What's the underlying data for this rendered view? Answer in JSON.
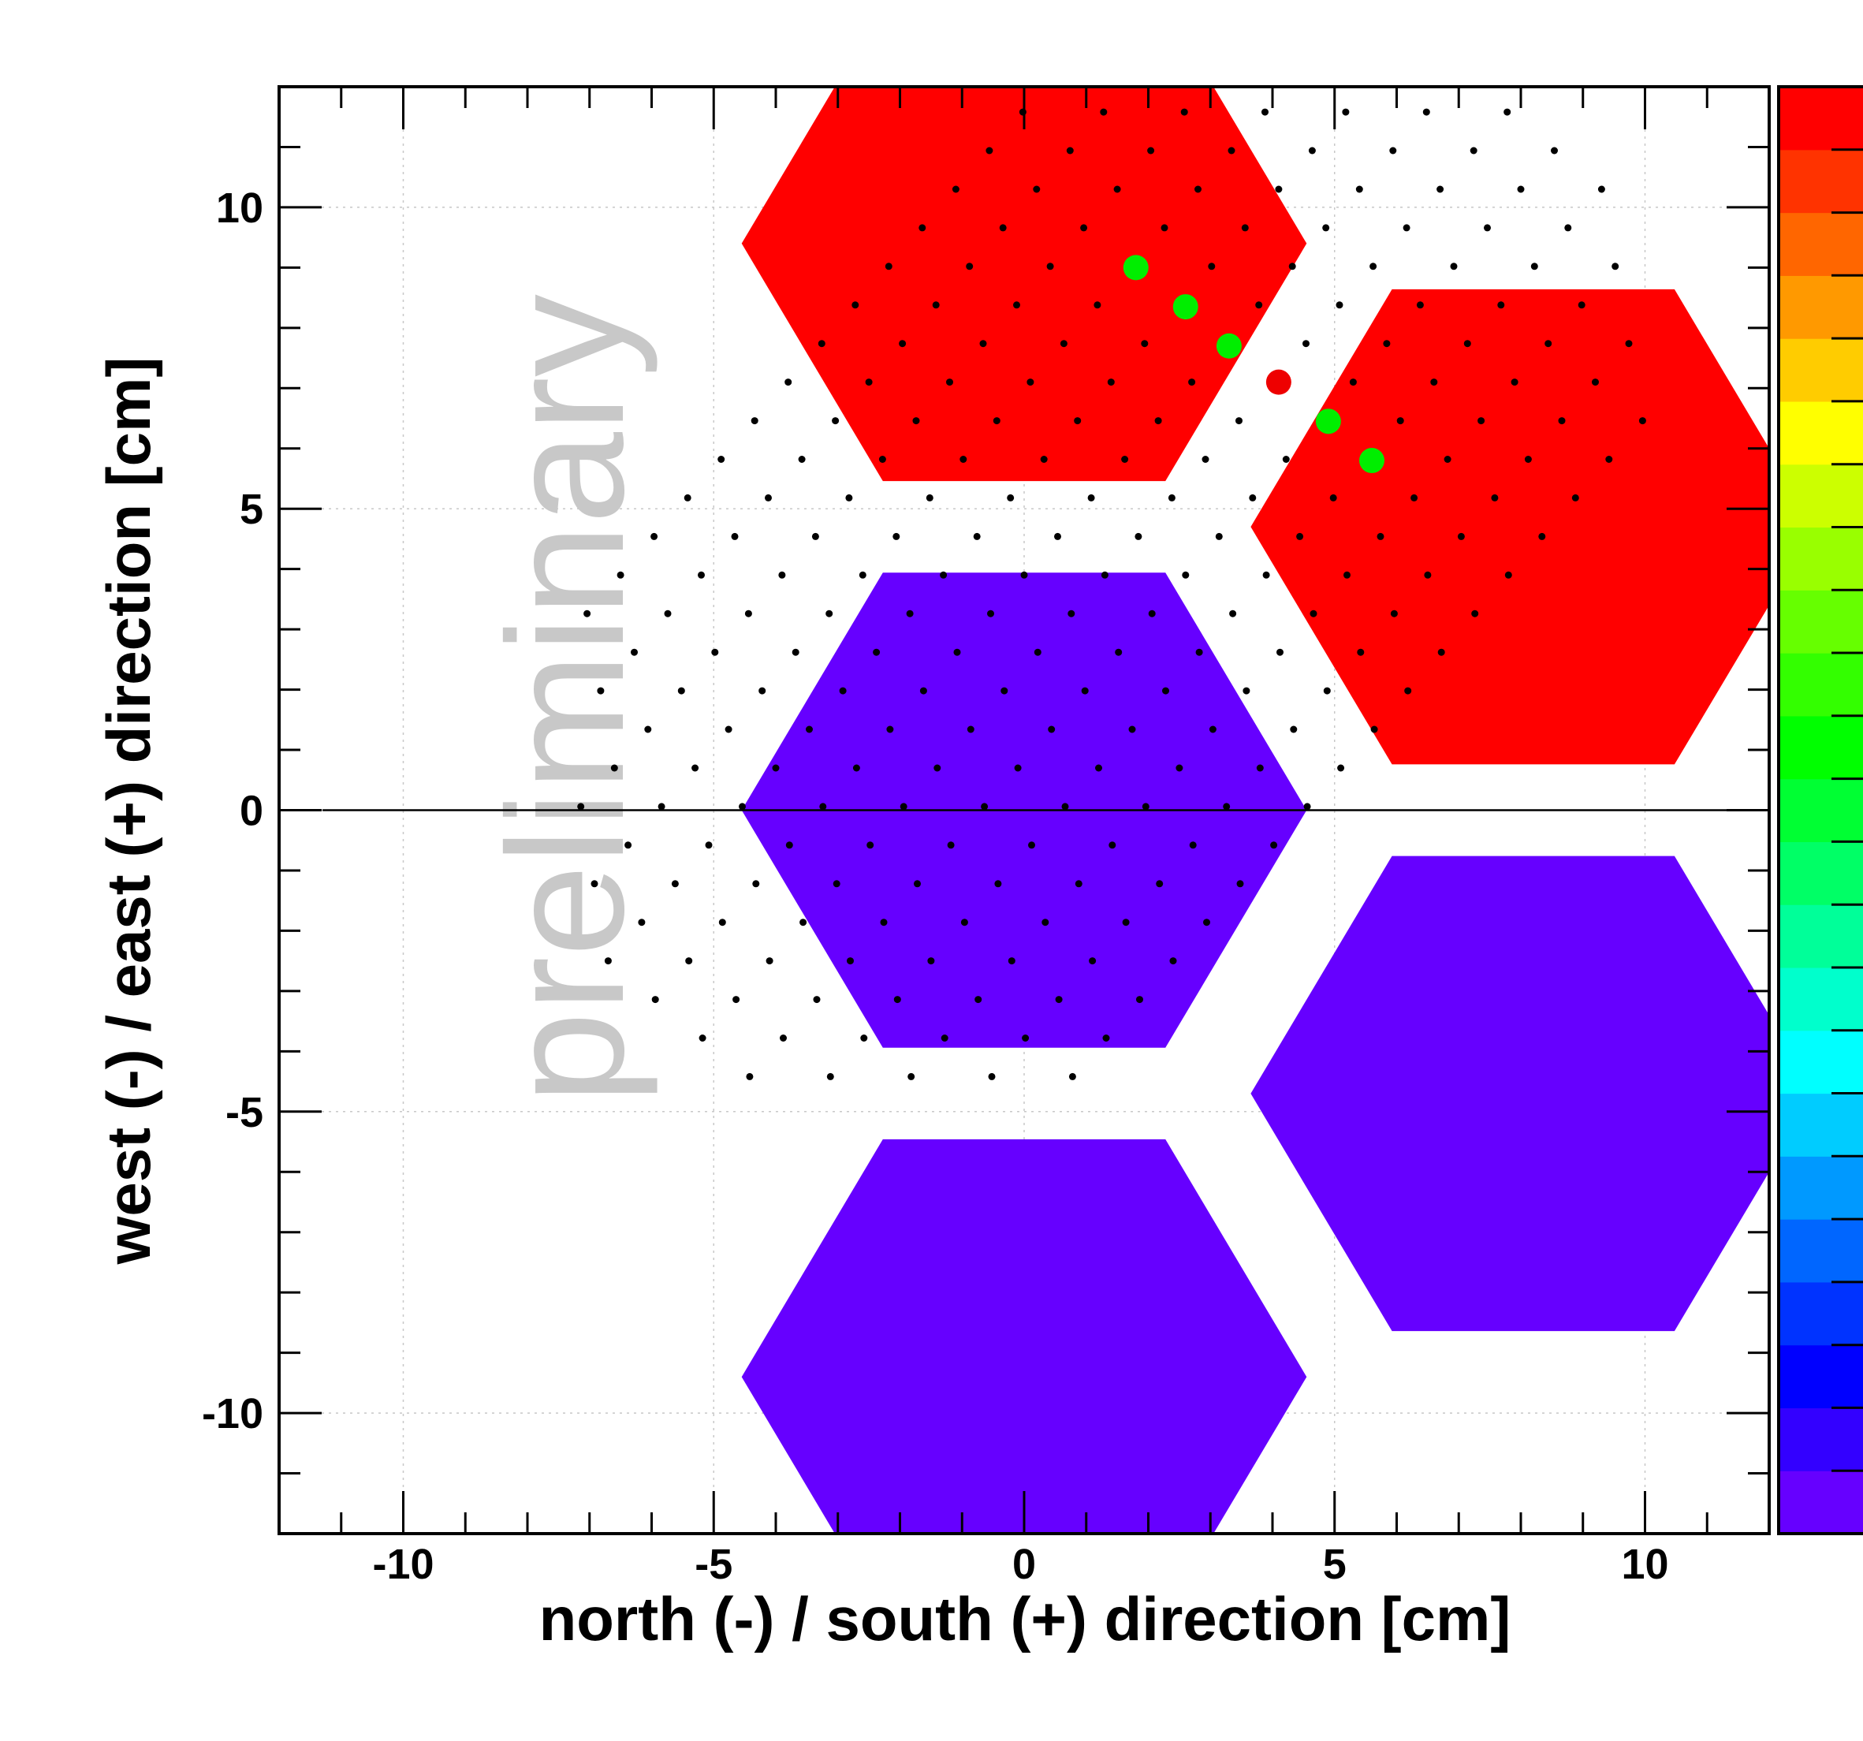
{
  "chart_data": {
    "type": "heatmap",
    "title": "",
    "xlabel": "north (-) / south (+) direction [cm]",
    "ylabel": "west (-) / east (+) direction [cm]",
    "xlim": [
      -12,
      12
    ],
    "ylim": [
      -12,
      12
    ],
    "xticks": [
      -10,
      -5,
      0,
      5,
      10
    ],
    "yticks": [
      10,
      5,
      0,
      -5,
      -10
    ],
    "grid": true,
    "watermark": "preliminary",
    "hexagon_circumradius_cm": 4.55,
    "colors": {
      "high": "#ff0000",
      "low": "#6600ff",
      "hit_point": "#00ee00",
      "center_point": "#ee0000",
      "grid_dot": "#000000",
      "baseline": "#000000"
    },
    "cells": [
      {
        "x": 0.0,
        "y": 9.4,
        "level": "high"
      },
      {
        "x": 8.2,
        "y": 4.7,
        "level": "high"
      },
      {
        "x": 0.0,
        "y": 0.0,
        "level": "low"
      },
      {
        "x": 8.2,
        "y": -4.7,
        "level": "low"
      },
      {
        "x": 0.0,
        "y": -9.4,
        "level": "low"
      }
    ],
    "color_scale": [
      "#6600ff",
      "#3300ff",
      "#0000ff",
      "#0033ff",
      "#0066ff",
      "#0099ff",
      "#00ccff",
      "#00ffff",
      "#00ffcc",
      "#00ff99",
      "#00ff66",
      "#00ff33",
      "#00ff00",
      "#33ff00",
      "#66ff00",
      "#99ff00",
      "#ccff00",
      "#ffff00",
      "#ffcc00",
      "#ff9900",
      "#ff6600",
      "#ff3300",
      "#ff0000"
    ],
    "hit_points": [
      {
        "x": 1.8,
        "y": 9.0
      },
      {
        "x": 2.6,
        "y": 8.35
      },
      {
        "x": 3.3,
        "y": 7.7
      },
      {
        "x": 4.9,
        "y": 6.45
      },
      {
        "x": 5.6,
        "y": 5.8
      }
    ],
    "center_point": {
      "x": 4.1,
      "y": 7.1
    },
    "dot_lattice": {
      "origin": {
        "x": 4.0,
        "y": 7.1
      },
      "step_u": {
        "x": 1.3,
        "y": 0.0
      },
      "step_v": {
        "x": -0.54,
        "y": -0.64
      },
      "u_range": [
        -6,
        5
      ],
      "v_range": [
        -7,
        18
      ]
    }
  }
}
